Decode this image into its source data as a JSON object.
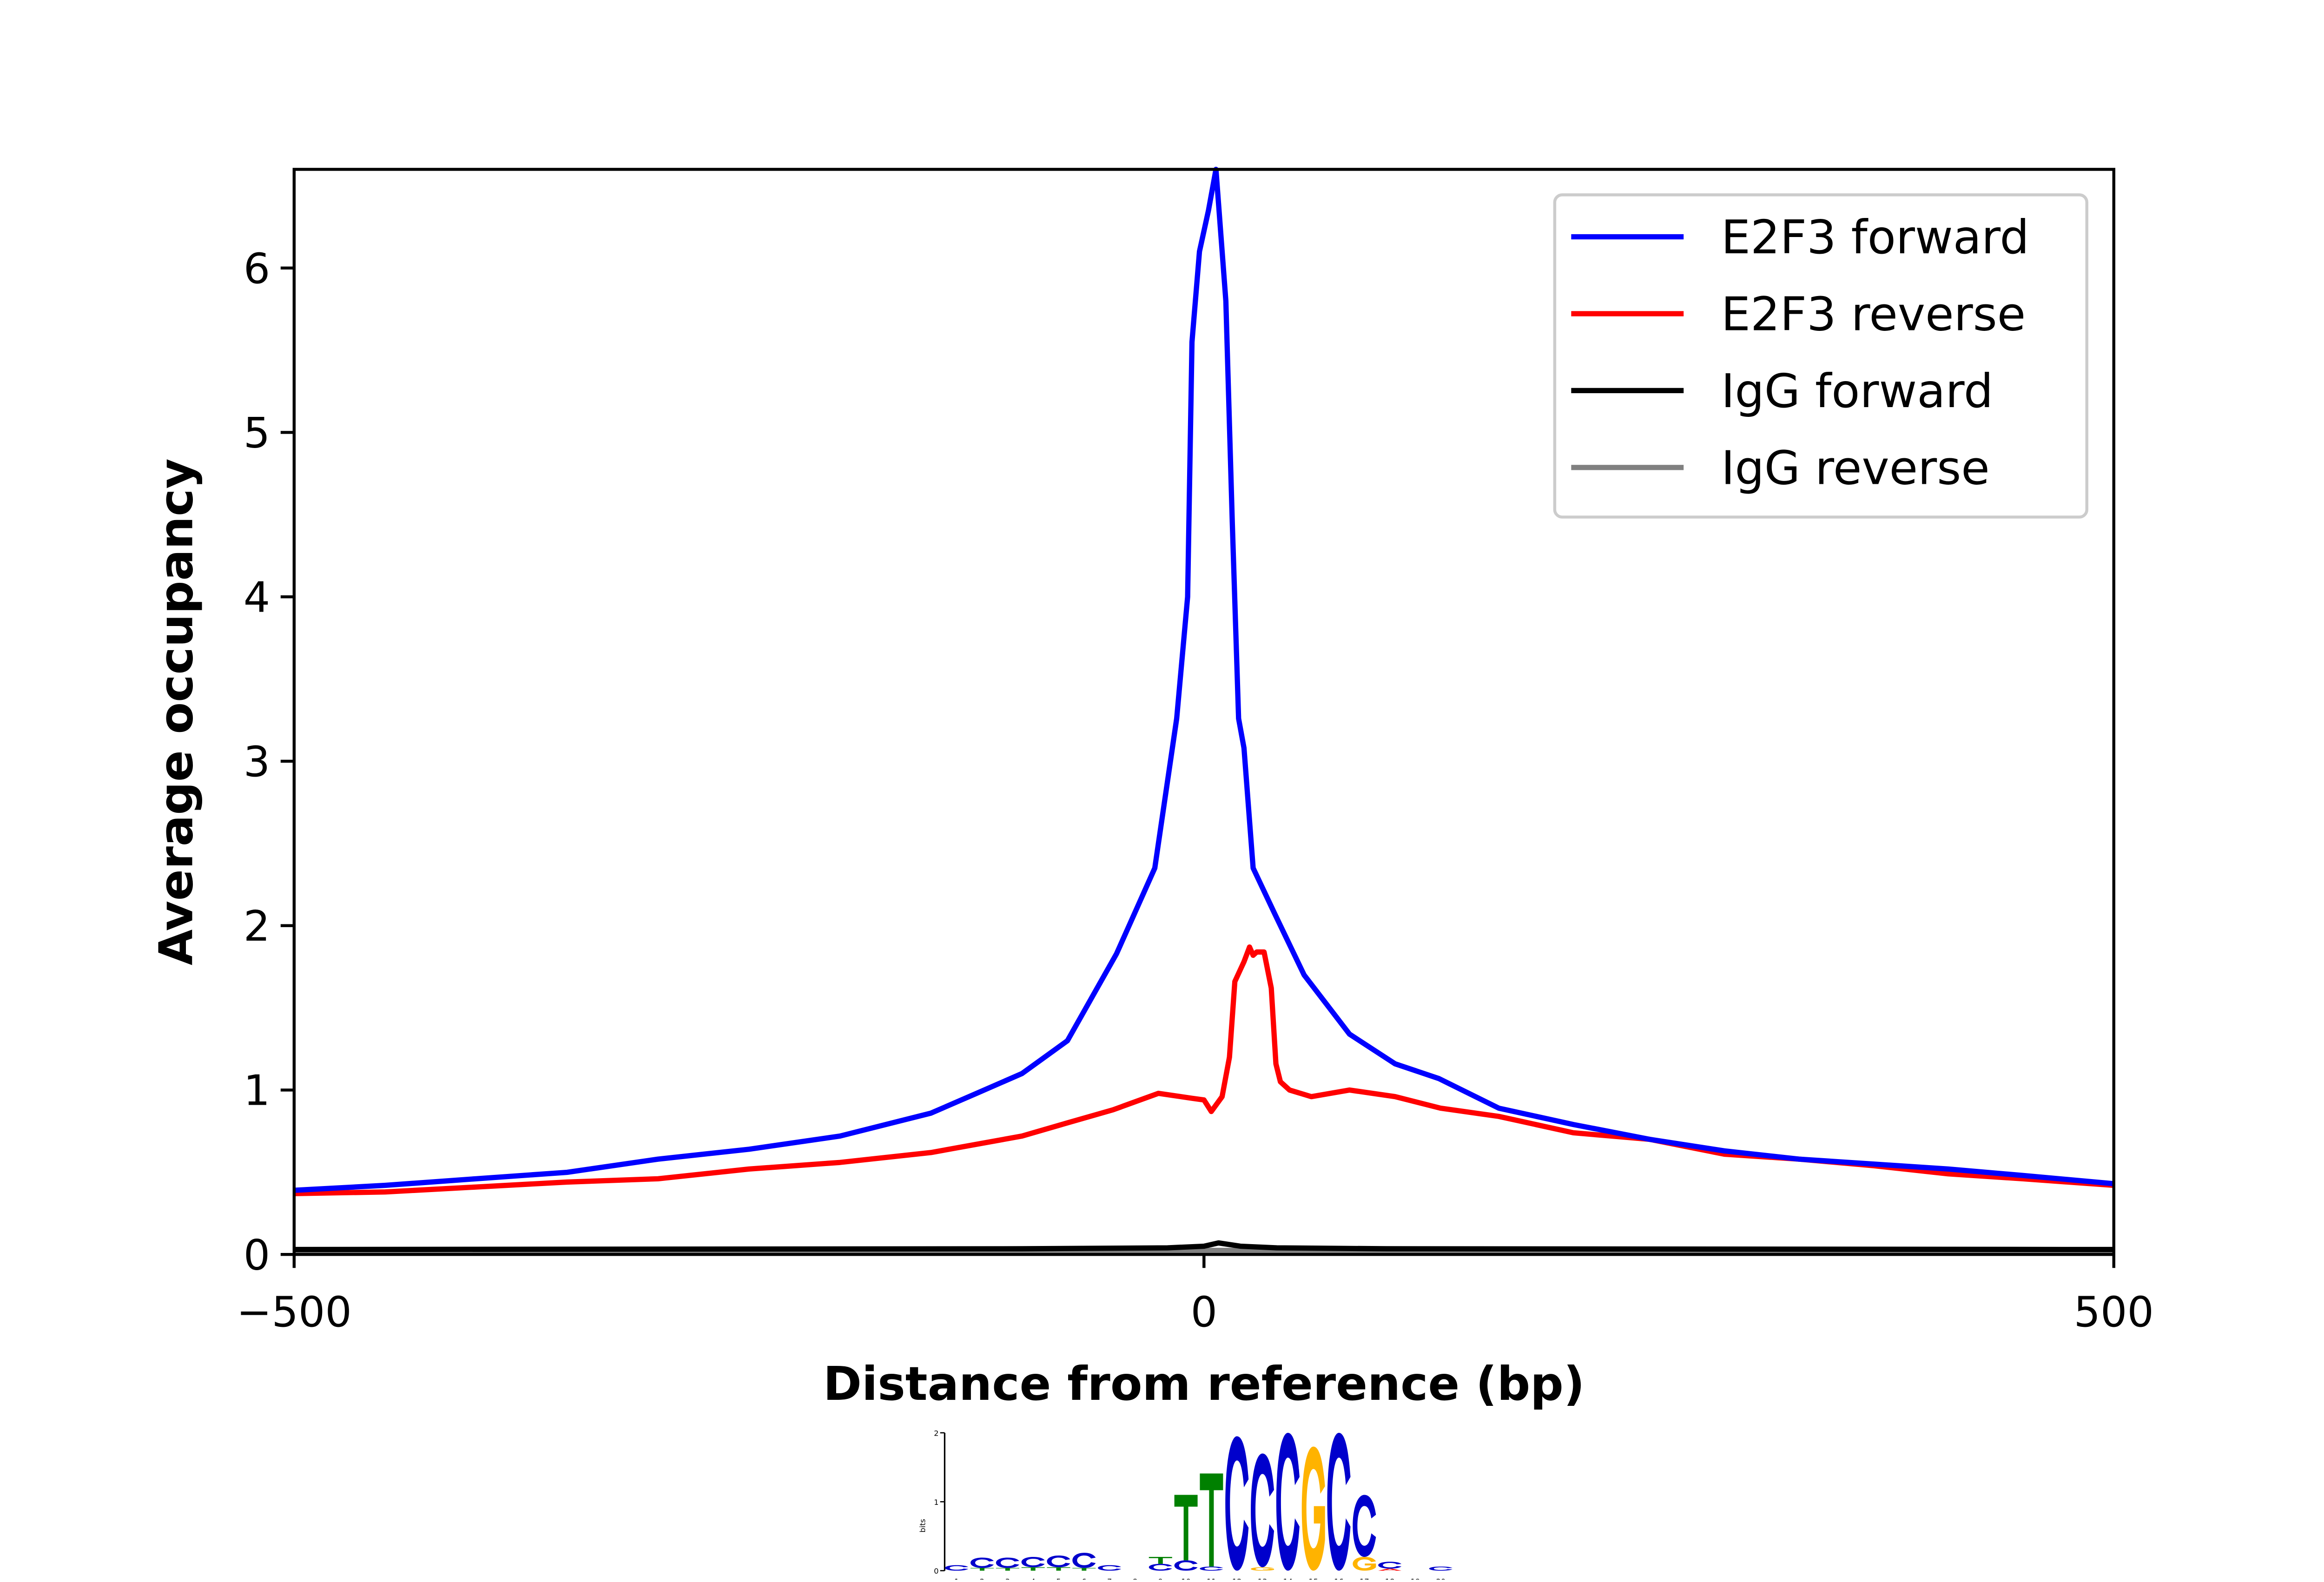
{
  "chart_data": {
    "type": "line",
    "title": "",
    "xlabel": "Distance from reference (bp)",
    "ylabel": "Average occupancy",
    "xlim": [
      -500,
      500
    ],
    "ylim": [
      0,
      6.6
    ],
    "x_ticks": [
      -500,
      0,
      500
    ],
    "x_tick_labels": [
      "−500",
      "0",
      "500"
    ],
    "y_ticks": [
      0,
      1,
      2,
      3,
      4,
      5,
      6
    ],
    "y_tick_labels": [
      "0",
      "1",
      "2",
      "3",
      "4",
      "5",
      "6"
    ],
    "grid": false,
    "legend_position": "top-right",
    "series": [
      {
        "name": "E2F3 forward",
        "color": "#0000ff",
        "x": [
          -500,
          -450,
          -400,
          -350,
          -300,
          -250,
          -200,
          -150,
          -125,
          -100,
          -75,
          -48,
          -27,
          -15,
          -9,
          -6.6,
          -2.5,
          2.5,
          6.6,
          12,
          15.6,
          19,
          22,
          27,
          39,
          55,
          80,
          105,
          129,
          162,
          203,
          245,
          286,
          327,
          368,
          409,
          450,
          500
        ],
        "y": [
          0.39,
          0.42,
          0.46,
          0.5,
          0.58,
          0.64,
          0.72,
          0.86,
          0.98,
          1.1,
          1.3,
          1.83,
          2.35,
          3.26,
          4.0,
          5.55,
          6.1,
          6.35,
          6.6,
          5.8,
          4.45,
          3.26,
          3.08,
          2.35,
          2.07,
          1.7,
          1.34,
          1.16,
          1.07,
          0.89,
          0.79,
          0.7,
          0.63,
          0.58,
          0.55,
          0.52,
          0.48,
          0.43
        ]
      },
      {
        "name": "E2F3 reverse",
        "color": "#ff0000",
        "x": [
          -500,
          -450,
          -400,
          -350,
          -300,
          -250,
          -200,
          -150,
          -100,
          -75,
          -50,
          -25,
          -6.6,
          0,
          4,
          8,
          10,
          14,
          17,
          22,
          25,
          27,
          29,
          33,
          37,
          39.5,
          42,
          47,
          59,
          80,
          105,
          130,
          162,
          203,
          245,
          286,
          327,
          368,
          409,
          450,
          500
        ],
        "y": [
          0.37,
          0.38,
          0.41,
          0.44,
          0.46,
          0.52,
          0.56,
          0.62,
          0.72,
          0.8,
          0.88,
          0.98,
          0.95,
          0.94,
          0.87,
          0.93,
          0.96,
          1.2,
          1.66,
          1.78,
          1.87,
          1.82,
          1.84,
          1.84,
          1.62,
          1.16,
          1.05,
          1.0,
          0.96,
          1.0,
          0.96,
          0.89,
          0.84,
          0.74,
          0.7,
          0.61,
          0.58,
          0.54,
          0.49,
          0.46,
          0.42
        ]
      },
      {
        "name": "IgG forward",
        "color": "#000000",
        "x": [
          -500,
          -100,
          -20,
          0,
          8,
          20,
          40,
          100,
          500
        ],
        "y": [
          0.03,
          0.035,
          0.04,
          0.05,
          0.07,
          0.05,
          0.04,
          0.035,
          0.03
        ]
      },
      {
        "name": "IgG reverse",
        "color": "#808080",
        "x": [
          -500,
          500
        ],
        "y": [
          0.025,
          0.025
        ]
      }
    ],
    "motif_logo": {
      "y_axis_label": "bits",
      "y_ticks": [
        "0",
        "1",
        "2"
      ],
      "positions": [
        "1",
        "2",
        "3",
        "4",
        "5",
        "6",
        "7",
        "8",
        "9",
        "10",
        "11",
        "12",
        "13",
        "14",
        "15",
        "16",
        "17",
        "18",
        "19",
        "20"
      ],
      "colors": {
        "A": "#ff0000",
        "C": "#0000cc",
        "G": "#ffb300",
        "T": "#008000"
      },
      "stacks": [
        [
          [
            "C",
            0.08
          ]
        ],
        [
          [
            "T",
            0.04
          ],
          [
            "C",
            0.15
          ]
        ],
        [
          [
            "T",
            0.04
          ],
          [
            "C",
            0.15
          ]
        ],
        [
          [
            "T",
            0.05
          ],
          [
            "C",
            0.15
          ]
        ],
        [
          [
            "T",
            0.05
          ],
          [
            "C",
            0.17
          ]
        ],
        [
          [
            "T",
            0.04
          ],
          [
            "C",
            0.22
          ]
        ],
        [
          [
            "C",
            0.08
          ]
        ],
        [],
        [
          [
            "C",
            0.1
          ],
          [
            "T",
            0.1
          ]
        ],
        [
          [
            "C",
            0.15
          ],
          [
            "T",
            0.95
          ]
        ],
        [
          [
            "C",
            0.06
          ],
          [
            "T",
            1.35
          ]
        ],
        [
          [
            "C",
            1.95
          ]
        ],
        [
          [
            "G",
            0.05
          ],
          [
            "C",
            1.65
          ]
        ],
        [
          [
            "C",
            2.0
          ]
        ],
        [
          [
            "G",
            1.8
          ]
        ],
        [
          [
            "C",
            2.0
          ]
        ],
        [
          [
            "G",
            0.2
          ],
          [
            "C",
            0.9
          ]
        ],
        [
          [
            "A",
            0.03
          ],
          [
            "C",
            0.1
          ]
        ],
        [],
        [
          [
            "C",
            0.06
          ]
        ]
      ]
    }
  }
}
